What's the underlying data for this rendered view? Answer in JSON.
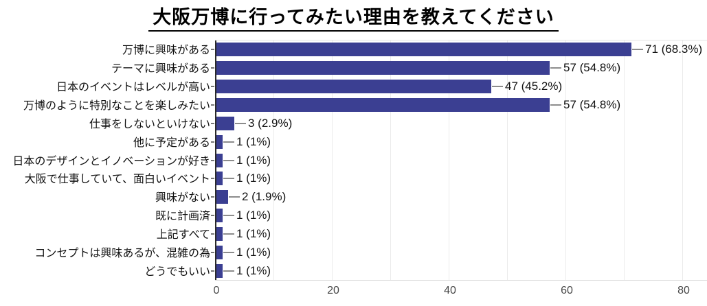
{
  "chart_data": {
    "type": "bar",
    "orientation": "horizontal",
    "title": "大阪万博に行ってみたい理由を教えてください",
    "categories": [
      "万博に興味がある",
      "テーマに興味がある",
      "日本のイベントはレベルが高い",
      "万博のように特別なことを楽しみたい",
      "仕事をしないといけない",
      "他に予定がある",
      "日本のデザインとイノベーションが好き",
      "大阪で仕事していて、面白いイベント",
      "興味がない",
      "既に計画済",
      "上記すべて",
      "コンセプトは興味あるが、混雑の為",
      "どうでもいい"
    ],
    "values": [
      71,
      57,
      47,
      57,
      3,
      1,
      1,
      1,
      2,
      1,
      1,
      1,
      1
    ],
    "value_labels": [
      "71 (68.3%)",
      "57 (54.8%)",
      "47 (45.2%)",
      "57 (54.8%)",
      "3 (2.9%)",
      "1 (1%)",
      "1 (1%)",
      "1 (1%)",
      "2 (1.9%)",
      "1 (1%)",
      "1 (1%)",
      "1 (1%)",
      "1 (1%)"
    ],
    "xlabel": "",
    "ylabel": "",
    "xlim": [
      0,
      84
    ],
    "x_ticks": [
      0,
      20,
      40,
      60,
      80
    ],
    "x_tick_labels": [
      "0",
      "20",
      "40",
      "60",
      "80"
    ],
    "grid_values": [
      10,
      20,
      30,
      40,
      50,
      60,
      70,
      80
    ],
    "grid": "vertical, every 10 units, light gray",
    "legend": "none",
    "colors": {
      "bar": "#3b3f92",
      "leader_line": "#8c8c8c",
      "gridline": "#ebebeb",
      "axis_line": "#2b2b2b",
      "value_text": "#111111",
      "category_text": "#111111",
      "x_tick_text": "#474747",
      "background": "#ffffff"
    }
  }
}
